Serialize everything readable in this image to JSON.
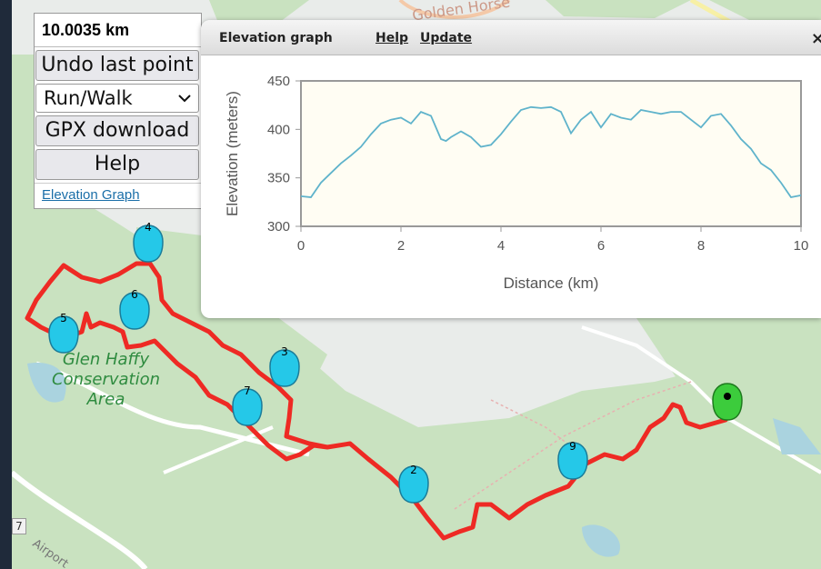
{
  "controls": {
    "distance": "10.0035 km",
    "undo_label": "Undo last point",
    "mode_value": "Run/Walk",
    "gpx_label": "GPX download",
    "help_label": "Help",
    "elevation_link": "Elevation Graph"
  },
  "elevation_panel": {
    "title": "Elevation graph",
    "help_link": "Help",
    "update_link": "Update",
    "close_glyph": "×"
  },
  "chart_data": {
    "type": "line",
    "title": "",
    "xlabel": "Distance (km)",
    "ylabel": "Elevation (meters)",
    "xlim": [
      0,
      10
    ],
    "ylim": [
      300,
      450
    ],
    "x_ticks": [
      "0",
      "2",
      "4",
      "6",
      "8",
      "10"
    ],
    "y_ticks": [
      "300",
      "350",
      "400",
      "450"
    ],
    "grid": false,
    "series_color": "#5fb3cb",
    "x": [
      0,
      0.2,
      0.4,
      0.6,
      0.8,
      1.0,
      1.2,
      1.4,
      1.6,
      1.8,
      2.0,
      2.2,
      2.4,
      2.6,
      2.8,
      2.9,
      3.0,
      3.2,
      3.4,
      3.6,
      3.8,
      4.0,
      4.2,
      4.4,
      4.6,
      4.8,
      5.0,
      5.2,
      5.4,
      5.6,
      5.8,
      6.0,
      6.2,
      6.4,
      6.6,
      6.8,
      7.0,
      7.2,
      7.4,
      7.6,
      7.8,
      8.0,
      8.2,
      8.4,
      8.6,
      8.8,
      9.0,
      9.2,
      9.4,
      9.6,
      9.8,
      10.0
    ],
    "y": [
      331,
      330,
      345,
      355,
      365,
      373,
      382,
      395,
      406,
      410,
      412,
      406,
      418,
      414,
      390,
      388,
      392,
      398,
      392,
      382,
      384,
      395,
      408,
      420,
      423,
      422,
      423,
      418,
      396,
      410,
      418,
      402,
      416,
      412,
      410,
      420,
      418,
      416,
      418,
      418,
      410,
      402,
      414,
      416,
      404,
      390,
      380,
      365,
      358,
      345,
      330,
      332
    ],
    "legend": false
  },
  "map": {
    "area_label_line1": "Glen Haffy",
    "area_label_line2": "Conservation",
    "area_label_line3": "Area",
    "road_label_top": "Golden Horse",
    "road_label_bottom": "Airport",
    "road_shield_number": "7",
    "route_color": "#ee2a24",
    "marker_color": "#25c8e8",
    "finish_marker_color": "#3ccc3c",
    "markers": [
      "2",
      "3",
      "4",
      "5",
      "6",
      "7",
      "9"
    ]
  }
}
